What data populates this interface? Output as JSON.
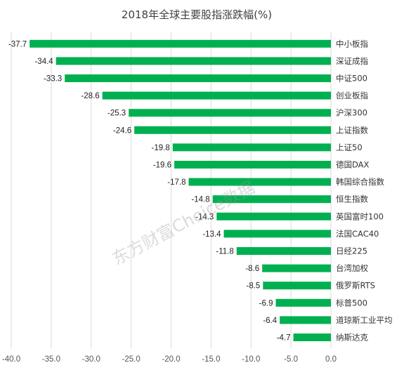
{
  "chart_data": {
    "type": "bar",
    "orientation": "horizontal",
    "title": "2018年全球主要股指涨跌幅(%)",
    "categories": [
      "中小板指",
      "深证成指",
      "中证500",
      "创业板指",
      "沪深300",
      "上证指数",
      "上证50",
      "德国DAX",
      "韩国综合指数",
      "恒生指数",
      "英国富时100",
      "法国CAC40",
      "日经225",
      "台湾加权",
      "俄罗斯RTS",
      "标普500",
      "道琼斯工业平均",
      "纳斯达克"
    ],
    "values": [
      -37.7,
      -34.4,
      -33.3,
      -28.6,
      -25.3,
      -24.6,
      -19.8,
      -19.6,
      -17.8,
      -14.8,
      -14.3,
      -13.4,
      -11.8,
      -8.6,
      -8.5,
      -6.9,
      -6.4,
      -4.7
    ],
    "value_labels": [
      "-37.7",
      "-34.4",
      "-33.3",
      "-28.6",
      "-25.3",
      "-24.6",
      "-19.8",
      "-19.6",
      "-17.8",
      "-14.8",
      "-14.3",
      "-13.4",
      "-11.8",
      "-8.6",
      "-8.5",
      "-6.9",
      "-6.4",
      "-4.7"
    ],
    "xlim": [
      -40.0,
      0.0
    ],
    "x_ticks": [
      -40.0,
      -35.0,
      -30.0,
      -25.0,
      -20.0,
      -15.0,
      -10.0,
      -5.0,
      0.0
    ],
    "x_tick_labels": [
      "-40.0",
      "-35.0",
      "-30.0",
      "-25.0",
      "-20.0",
      "-15.0",
      "-10.0",
      "-5.0",
      "0.0"
    ],
    "grid": true,
    "bar_color": "#00b050",
    "watermark": "东方财富Choice数据"
  }
}
